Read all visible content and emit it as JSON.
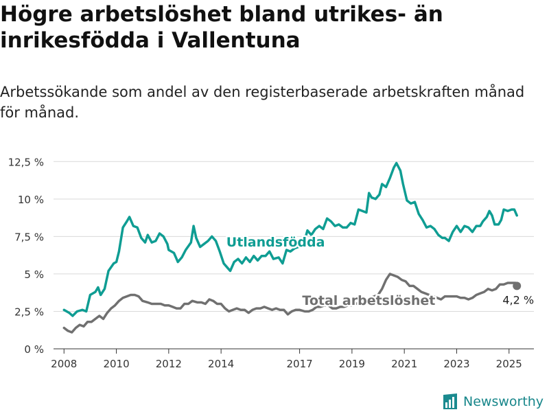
{
  "title": "Högre arbetslöshet bland utrikes- än inrikesfödda i Vallentuna",
  "subtitle": "Arbetssökande som andel av den registerbaserade arbetskraften månad för månad.",
  "brand": "Newsworthy",
  "chart_data": {
    "type": "line",
    "y_tick_labels": [
      "0 %",
      "2,5 %",
      "5 %",
      "7,5 %",
      "10 %",
      "12,5 %"
    ],
    "y_ticks": [
      0,
      2.5,
      5,
      7.5,
      10,
      12.5
    ],
    "ylim": [
      0,
      13.2
    ],
    "xlim": [
      2007.6,
      2025.95
    ],
    "x_ticks": [
      2008,
      2010,
      2012,
      2014,
      2017,
      2019,
      2021,
      2023,
      2025
    ],
    "x_tick_labels": [
      "2008",
      "2010",
      "2012",
      "2014",
      "2017",
      "2019",
      "2021",
      "2023",
      "2025"
    ],
    "grid": true,
    "series": [
      {
        "name": "Utlandsfödda",
        "color": "#0f9d93",
        "label_at": [
          2014.2,
          7.1
        ],
        "points": [
          [
            2008.0,
            2.6
          ],
          [
            2008.2,
            2.4
          ],
          [
            2008.33,
            2.2
          ],
          [
            2008.5,
            2.5
          ],
          [
            2008.7,
            2.6
          ],
          [
            2008.85,
            2.5
          ],
          [
            2009.0,
            3.6
          ],
          [
            2009.2,
            3.8
          ],
          [
            2009.3,
            4.1
          ],
          [
            2009.4,
            3.6
          ],
          [
            2009.55,
            4.0
          ],
          [
            2009.7,
            5.2
          ],
          [
            2009.9,
            5.7
          ],
          [
            2010.0,
            5.8
          ],
          [
            2010.1,
            6.5
          ],
          [
            2010.25,
            8.1
          ],
          [
            2010.4,
            8.5
          ],
          [
            2010.5,
            8.8
          ],
          [
            2010.65,
            8.2
          ],
          [
            2010.8,
            8.1
          ],
          [
            2010.95,
            7.4
          ],
          [
            2011.1,
            7.1
          ],
          [
            2011.2,
            7.6
          ],
          [
            2011.35,
            7.1
          ],
          [
            2011.5,
            7.2
          ],
          [
            2011.65,
            7.7
          ],
          [
            2011.8,
            7.5
          ],
          [
            2011.95,
            7.0
          ],
          [
            2012.0,
            6.6
          ],
          [
            2012.2,
            6.4
          ],
          [
            2012.35,
            5.8
          ],
          [
            2012.5,
            6.1
          ],
          [
            2012.65,
            6.6
          ],
          [
            2012.85,
            7.1
          ],
          [
            2012.95,
            8.2
          ],
          [
            2013.05,
            7.4
          ],
          [
            2013.2,
            6.8
          ],
          [
            2013.35,
            7.0
          ],
          [
            2013.5,
            7.2
          ],
          [
            2013.65,
            7.5
          ],
          [
            2013.8,
            7.2
          ],
          [
            2013.95,
            6.5
          ],
          [
            2014.1,
            5.7
          ],
          [
            2014.25,
            5.4
          ],
          [
            2014.35,
            5.2
          ],
          [
            2014.5,
            5.8
          ],
          [
            2014.65,
            6.0
          ],
          [
            2014.8,
            5.7
          ],
          [
            2014.95,
            6.1
          ],
          [
            2015.1,
            5.8
          ],
          [
            2015.25,
            6.2
          ],
          [
            2015.4,
            5.9
          ],
          [
            2015.55,
            6.2
          ],
          [
            2015.7,
            6.2
          ],
          [
            2015.85,
            6.5
          ],
          [
            2016.0,
            6.0
          ],
          [
            2016.2,
            6.1
          ],
          [
            2016.35,
            5.7
          ],
          [
            2016.5,
            6.6
          ],
          [
            2016.65,
            6.5
          ],
          [
            2016.8,
            6.7
          ],
          [
            2016.95,
            6.8
          ],
          [
            2017.15,
            7.0
          ],
          [
            2017.3,
            7.9
          ],
          [
            2017.45,
            7.6
          ],
          [
            2017.6,
            8.0
          ],
          [
            2017.75,
            8.2
          ],
          [
            2017.9,
            8.0
          ],
          [
            2018.05,
            8.7
          ],
          [
            2018.2,
            8.5
          ],
          [
            2018.35,
            8.2
          ],
          [
            2018.5,
            8.3
          ],
          [
            2018.65,
            8.1
          ],
          [
            2018.8,
            8.1
          ],
          [
            2018.95,
            8.4
          ],
          [
            2019.1,
            8.3
          ],
          [
            2019.25,
            9.3
          ],
          [
            2019.4,
            9.2
          ],
          [
            2019.55,
            9.1
          ],
          [
            2019.65,
            10.4
          ],
          [
            2019.75,
            10.1
          ],
          [
            2019.9,
            10.0
          ],
          [
            2020.05,
            10.3
          ],
          [
            2020.15,
            11.0
          ],
          [
            2020.3,
            10.8
          ],
          [
            2020.45,
            11.4
          ],
          [
            2020.6,
            12.1
          ],
          [
            2020.7,
            12.4
          ],
          [
            2020.85,
            11.9
          ],
          [
            2020.95,
            11.0
          ],
          [
            2021.1,
            9.9
          ],
          [
            2021.25,
            9.7
          ],
          [
            2021.4,
            9.8
          ],
          [
            2021.55,
            9.0
          ],
          [
            2021.7,
            8.6
          ],
          [
            2021.85,
            8.1
          ],
          [
            2022.0,
            8.2
          ],
          [
            2022.15,
            8.0
          ],
          [
            2022.3,
            7.6
          ],
          [
            2022.45,
            7.4
          ],
          [
            2022.55,
            7.4
          ],
          [
            2022.7,
            7.2
          ],
          [
            2022.85,
            7.8
          ],
          [
            2023.0,
            8.2
          ],
          [
            2023.15,
            7.8
          ],
          [
            2023.3,
            8.2
          ],
          [
            2023.45,
            8.1
          ],
          [
            2023.6,
            7.8
          ],
          [
            2023.75,
            8.2
          ],
          [
            2023.9,
            8.2
          ],
          [
            2024.0,
            8.5
          ],
          [
            2024.15,
            8.8
          ],
          [
            2024.25,
            9.2
          ],
          [
            2024.35,
            8.9
          ],
          [
            2024.45,
            8.3
          ],
          [
            2024.6,
            8.3
          ],
          [
            2024.7,
            8.6
          ],
          [
            2024.8,
            9.3
          ],
          [
            2024.95,
            9.2
          ],
          [
            2025.1,
            9.3
          ],
          [
            2025.2,
            9.3
          ],
          [
            2025.3,
            8.9
          ]
        ]
      },
      {
        "name": "Total arbetslöshet",
        "color": "#707070",
        "label_at": [
          2017.1,
          3.2
        ],
        "end_label": "4,2 %",
        "points": [
          [
            2008.0,
            1.4
          ],
          [
            2008.15,
            1.2
          ],
          [
            2008.3,
            1.1
          ],
          [
            2008.45,
            1.4
          ],
          [
            2008.6,
            1.6
          ],
          [
            2008.75,
            1.5
          ],
          [
            2008.9,
            1.8
          ],
          [
            2009.05,
            1.8
          ],
          [
            2009.2,
            2.0
          ],
          [
            2009.35,
            2.2
          ],
          [
            2009.5,
            2.0
          ],
          [
            2009.65,
            2.4
          ],
          [
            2009.8,
            2.7
          ],
          [
            2009.95,
            2.9
          ],
          [
            2010.1,
            3.2
          ],
          [
            2010.25,
            3.4
          ],
          [
            2010.4,
            3.5
          ],
          [
            2010.55,
            3.6
          ],
          [
            2010.7,
            3.6
          ],
          [
            2010.85,
            3.5
          ],
          [
            2011.0,
            3.2
          ],
          [
            2011.2,
            3.1
          ],
          [
            2011.35,
            3.0
          ],
          [
            2011.5,
            3.0
          ],
          [
            2011.7,
            3.0
          ],
          [
            2011.85,
            2.9
          ],
          [
            2012.0,
            2.9
          ],
          [
            2012.15,
            2.8
          ],
          [
            2012.3,
            2.7
          ],
          [
            2012.45,
            2.7
          ],
          [
            2012.6,
            3.0
          ],
          [
            2012.75,
            3.0
          ],
          [
            2012.9,
            3.2
          ],
          [
            2013.1,
            3.1
          ],
          [
            2013.25,
            3.1
          ],
          [
            2013.4,
            3.0
          ],
          [
            2013.55,
            3.3
          ],
          [
            2013.7,
            3.2
          ],
          [
            2013.85,
            3.0
          ],
          [
            2014.0,
            3.0
          ],
          [
            2014.15,
            2.7
          ],
          [
            2014.3,
            2.5
          ],
          [
            2014.45,
            2.6
          ],
          [
            2014.6,
            2.7
          ],
          [
            2014.75,
            2.6
          ],
          [
            2014.9,
            2.6
          ],
          [
            2015.05,
            2.4
          ],
          [
            2015.2,
            2.6
          ],
          [
            2015.35,
            2.7
          ],
          [
            2015.5,
            2.7
          ],
          [
            2015.65,
            2.8
          ],
          [
            2015.8,
            2.7
          ],
          [
            2015.95,
            2.6
          ],
          [
            2016.1,
            2.7
          ],
          [
            2016.25,
            2.6
          ],
          [
            2016.4,
            2.6
          ],
          [
            2016.55,
            2.3
          ],
          [
            2016.7,
            2.5
          ],
          [
            2016.85,
            2.6
          ],
          [
            2017.0,
            2.6
          ],
          [
            2017.2,
            2.5
          ],
          [
            2017.35,
            2.5
          ],
          [
            2017.5,
            2.6
          ],
          [
            2017.65,
            2.8
          ],
          [
            2017.8,
            2.8
          ],
          [
            2017.95,
            2.9
          ],
          [
            2018.1,
            2.9
          ],
          [
            2018.25,
            2.7
          ],
          [
            2018.4,
            2.7
          ],
          [
            2018.55,
            2.8
          ],
          [
            2018.7,
            2.8
          ],
          [
            2018.85,
            2.9
          ],
          [
            2019.0,
            2.9
          ],
          [
            2019.15,
            3.0
          ],
          [
            2019.3,
            3.1
          ],
          [
            2019.5,
            3.1
          ],
          [
            2019.7,
            3.4
          ],
          [
            2019.85,
            3.5
          ],
          [
            2020.0,
            3.6
          ],
          [
            2020.15,
            4.0
          ],
          [
            2020.3,
            4.6
          ],
          [
            2020.45,
            5.0
          ],
          [
            2020.6,
            4.9
          ],
          [
            2020.75,
            4.8
          ],
          [
            2020.9,
            4.6
          ],
          [
            2021.05,
            4.5
          ],
          [
            2021.2,
            4.2
          ],
          [
            2021.35,
            4.2
          ],
          [
            2021.5,
            4.0
          ],
          [
            2021.65,
            3.8
          ],
          [
            2021.8,
            3.7
          ],
          [
            2021.95,
            3.6
          ],
          [
            2022.1,
            3.5
          ],
          [
            2022.25,
            3.4
          ],
          [
            2022.4,
            3.3
          ],
          [
            2022.55,
            3.5
          ],
          [
            2022.7,
            3.5
          ],
          [
            2022.85,
            3.5
          ],
          [
            2023.0,
            3.5
          ],
          [
            2023.15,
            3.4
          ],
          [
            2023.3,
            3.4
          ],
          [
            2023.45,
            3.3
          ],
          [
            2023.6,
            3.4
          ],
          [
            2023.75,
            3.6
          ],
          [
            2023.9,
            3.7
          ],
          [
            2024.05,
            3.8
          ],
          [
            2024.2,
            4.0
          ],
          [
            2024.35,
            3.9
          ],
          [
            2024.5,
            4.0
          ],
          [
            2024.65,
            4.3
          ],
          [
            2024.8,
            4.3
          ],
          [
            2024.95,
            4.4
          ],
          [
            2025.1,
            4.4
          ],
          [
            2025.25,
            4.4
          ],
          [
            2025.3,
            4.2
          ]
        ]
      }
    ]
  }
}
